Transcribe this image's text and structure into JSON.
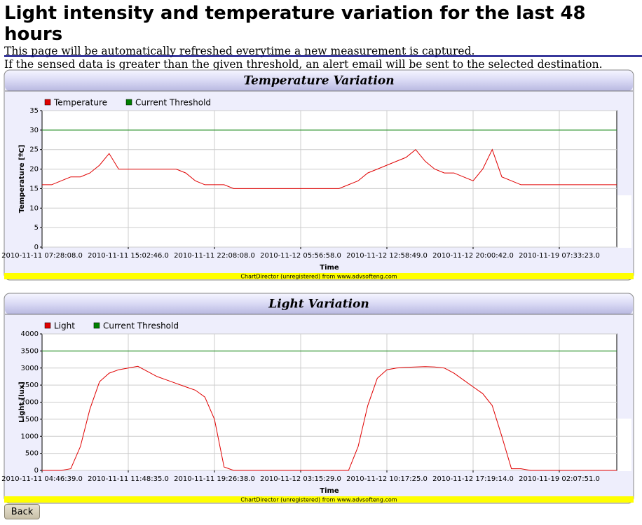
{
  "header": {
    "title": "Light intensity and temperature variation for the last 48 hours",
    "lines": [
      "This page will be automatically refreshed everytime a new measurement is captured.",
      "If the sensed data is greater than the given threshold, an alert email will be sent to the selected destination."
    ]
  },
  "chart_data": [
    {
      "type": "line",
      "title": "Temperature Variation",
      "y_label": "Temperature [ºC]",
      "x_label": "Time",
      "footer": "ChartDirector (unregistered) from www.advsofteng.com",
      "ylim": [
        0,
        35
      ],
      "yticks": [
        0,
        5,
        10,
        15,
        20,
        25,
        30,
        35
      ],
      "grid": true,
      "categories": [
        "2010-11-11 07:28:08.0",
        null,
        null,
        null,
        null,
        null,
        null,
        null,
        null,
        "2010-11-11 15:02:46.0",
        null,
        null,
        null,
        null,
        null,
        null,
        null,
        null,
        "2010-11-11 22:08:08.0",
        null,
        null,
        null,
        null,
        null,
        null,
        null,
        null,
        "2010-11-12 05:56:58.0",
        null,
        null,
        null,
        null,
        null,
        null,
        null,
        null,
        "2010-11-12 12:58:49.0",
        null,
        null,
        null,
        null,
        null,
        null,
        null,
        null,
        "2010-11-12 20:00:42.0",
        null,
        null,
        null,
        null,
        null,
        null,
        null,
        null,
        "2010-11-19 07:33:23.0",
        null,
        null,
        null,
        null,
        null,
        null
      ],
      "series": [
        {
          "name": "Temperature",
          "color": "#e00000",
          "values": [
            16,
            16,
            17,
            18,
            18,
            19,
            21,
            24,
            20,
            20,
            20,
            20,
            20,
            20,
            20,
            19,
            17,
            16,
            16,
            16,
            15,
            15,
            15,
            15,
            15,
            15,
            15,
            15,
            15,
            15,
            15,
            15,
            16,
            17,
            19,
            20,
            21,
            22,
            23,
            25,
            22,
            20,
            19,
            19,
            18,
            17,
            20,
            25,
            18,
            17,
            16,
            16,
            16,
            16,
            16,
            16,
            16,
            16,
            16,
            16,
            16
          ]
        },
        {
          "name": "Current Threshold",
          "color": "#008000",
          "values": [
            30,
            30,
            30,
            30,
            30,
            30,
            30,
            30,
            30,
            30,
            30,
            30,
            30,
            30,
            30,
            30,
            30,
            30,
            30,
            30,
            30,
            30,
            30,
            30,
            30,
            30,
            30,
            30,
            30,
            30,
            30,
            30,
            30,
            30,
            30,
            30,
            30,
            30,
            30,
            30,
            30,
            30,
            30,
            30,
            30,
            30,
            30,
            30,
            30,
            30,
            30,
            30,
            30,
            30,
            30,
            30,
            30,
            30,
            30,
            30,
            30
          ]
        }
      ]
    },
    {
      "type": "line",
      "title": "Light Variation",
      "y_label": "Light [lux]",
      "x_label": "Time",
      "footer": "ChartDirector (unregistered) from www.advsofteng.com",
      "ylim": [
        0,
        4000
      ],
      "yticks": [
        0,
        500,
        1000,
        1500,
        2000,
        2500,
        3000,
        3500,
        4000
      ],
      "grid": true,
      "categories": [
        "2010-11-11 04:46:39.0",
        null,
        null,
        null,
        null,
        null,
        null,
        null,
        null,
        "2010-11-11 11:48:35.0",
        null,
        null,
        null,
        null,
        null,
        null,
        null,
        null,
        "2010-11-11 19:26:38.0",
        null,
        null,
        null,
        null,
        null,
        null,
        null,
        null,
        "2010-11-12 03:15:29.0",
        null,
        null,
        null,
        null,
        null,
        null,
        null,
        null,
        "2010-11-12 10:17:25.0",
        null,
        null,
        null,
        null,
        null,
        null,
        null,
        null,
        "2010-11-12 17:19:14.0",
        null,
        null,
        null,
        null,
        null,
        null,
        null,
        null,
        "2010-11-19 02:07:51.0",
        null,
        null,
        null,
        null,
        null,
        null
      ],
      "series": [
        {
          "name": "Light",
          "color": "#e00000",
          "values": [
            0,
            0,
            0,
            50,
            700,
            1800,
            2600,
            2850,
            2950,
            3000,
            3050,
            2900,
            2750,
            2650,
            2550,
            2450,
            2350,
            2150,
            1500,
            100,
            0,
            0,
            0,
            0,
            0,
            0,
            0,
            0,
            0,
            0,
            0,
            0,
            0,
            700,
            1900,
            2700,
            2950,
            3000,
            3020,
            3030,
            3040,
            3030,
            3000,
            2850,
            2650,
            2450,
            2250,
            1900,
            1000,
            50,
            50,
            0,
            0,
            0,
            0,
            0,
            0,
            0,
            0,
            0,
            0
          ]
        },
        {
          "name": "Current Threshold",
          "color": "#008000",
          "values": [
            3500,
            3500,
            3500,
            3500,
            3500,
            3500,
            3500,
            3500,
            3500,
            3500,
            3500,
            3500,
            3500,
            3500,
            3500,
            3500,
            3500,
            3500,
            3500,
            3500,
            3500,
            3500,
            3500,
            3500,
            3500,
            3500,
            3500,
            3500,
            3500,
            3500,
            3500,
            3500,
            3500,
            3500,
            3500,
            3500,
            3500,
            3500,
            3500,
            3500,
            3500,
            3500,
            3500,
            3500,
            3500,
            3500,
            3500,
            3500,
            3500,
            3500,
            3500,
            3500,
            3500,
            3500,
            3500,
            3500,
            3500,
            3500,
            3500,
            3500,
            3500
          ]
        }
      ]
    }
  ],
  "back_button": "Back"
}
